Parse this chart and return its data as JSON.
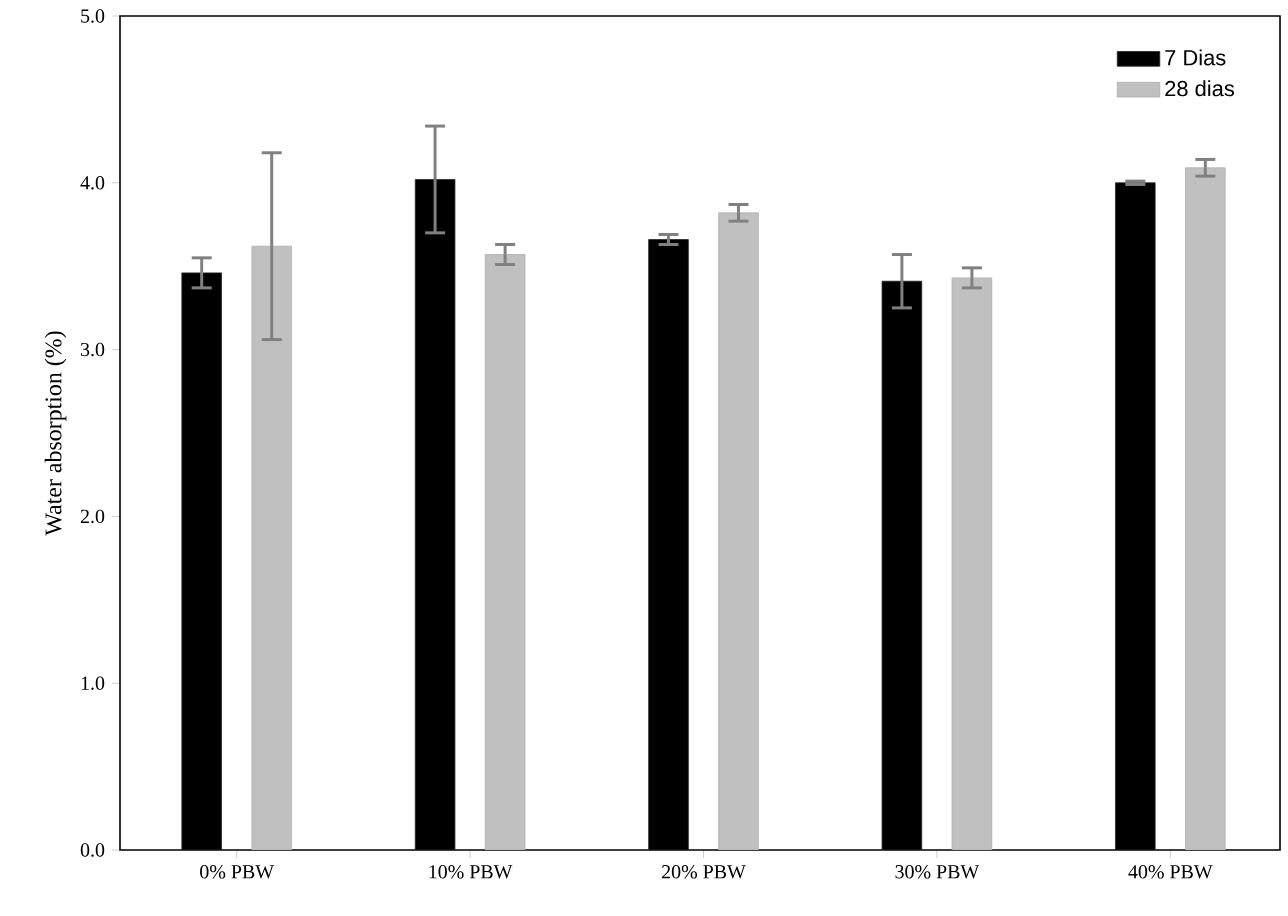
{
  "chart_data": {
    "type": "bar",
    "ylabel": "Water absorption (%)",
    "categories": [
      "0% PBW",
      "10% PBW",
      "20% PBW",
      "30% PBW",
      "40% PBW"
    ],
    "series": [
      {
        "name": "7 Dias",
        "color": "#000000",
        "values": [
          3.46,
          4.02,
          3.66,
          3.41,
          4.0
        ],
        "errors": [
          0.09,
          0.32,
          0.03,
          0.16,
          0.01
        ]
      },
      {
        "name": "28 dias",
        "color": "#c0c0c0",
        "values": [
          3.62,
          3.57,
          3.82,
          3.43,
          4.09
        ],
        "errors": [
          0.56,
          0.06,
          0.05,
          0.06,
          0.05
        ]
      }
    ],
    "ylim": [
      0,
      5
    ],
    "yticks": [
      {
        "value": 0,
        "label": "0.0"
      },
      {
        "value": 1,
        "label": "1.0"
      },
      {
        "value": 2,
        "label": "2.0"
      },
      {
        "value": 3,
        "label": "3.0"
      },
      {
        "value": 4,
        "label": "4.0"
      },
      {
        "value": 5,
        "label": "5.0"
      }
    ],
    "legend": "top right",
    "grid": false
  }
}
